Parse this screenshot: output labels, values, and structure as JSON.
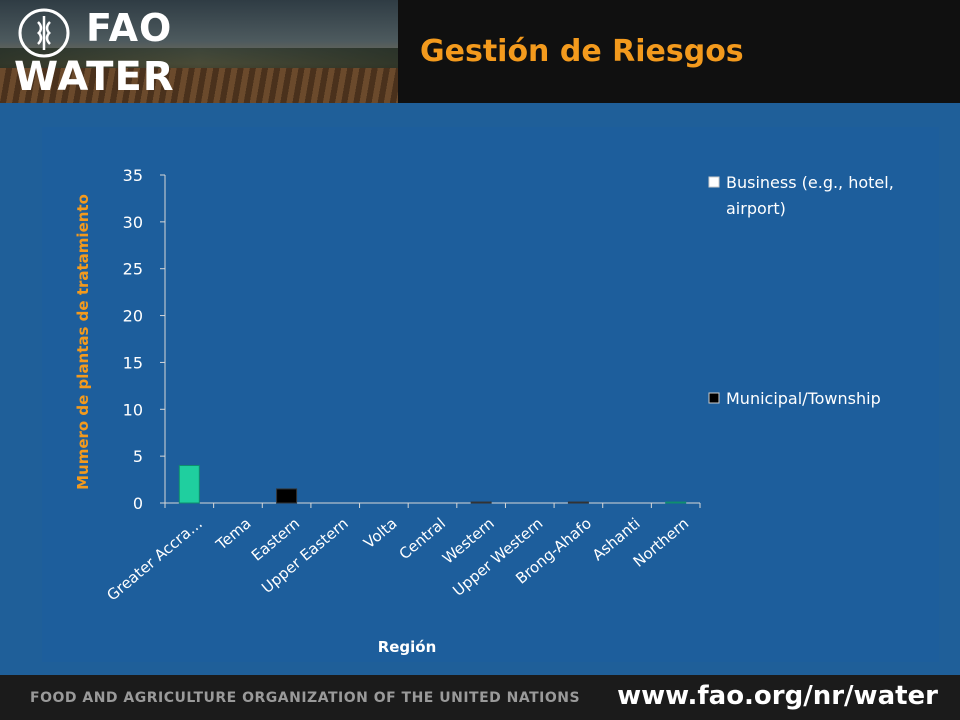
{
  "header": {
    "logo_fao": "FAO",
    "logo_water": "WATER",
    "title": "Gestión de Riesgos"
  },
  "footer": {
    "organization": "FOOD AND AGRICULTURE ORGANIZATION OF THE UNITED NATIONS",
    "url": "www.fao.org/nr/water"
  },
  "colors": {
    "title": "#f39a1d",
    "background": "#1f5f99",
    "business": "#1fcf9f",
    "municipal": "#000000"
  },
  "chart_data": {
    "type": "bar",
    "xlabel": "Región",
    "ylabel": "Mumero de plantas de tratamiento",
    "ylim": [
      0,
      35
    ],
    "yticks": [
      0,
      5,
      10,
      15,
      20,
      25,
      30,
      35
    ],
    "categories": [
      "Greater Accra…",
      "Tema",
      "Eastern",
      "Upper Eastern",
      "Volta",
      "Central",
      "Western",
      "Upper Western",
      "Brong-Ahafo",
      "Ashanti",
      "Northern"
    ],
    "series": [
      {
        "name": "Business (e.g., hotel, airport)",
        "values": [
          4,
          0,
          0,
          0,
          0,
          0,
          0,
          0,
          0,
          0,
          0.1
        ]
      },
      {
        "name": "Municipal/Township",
        "values": [
          0,
          0,
          1.5,
          0,
          0,
          0,
          0.1,
          0,
          0.1,
          0,
          0
        ]
      }
    ],
    "legend_position": "right"
  }
}
